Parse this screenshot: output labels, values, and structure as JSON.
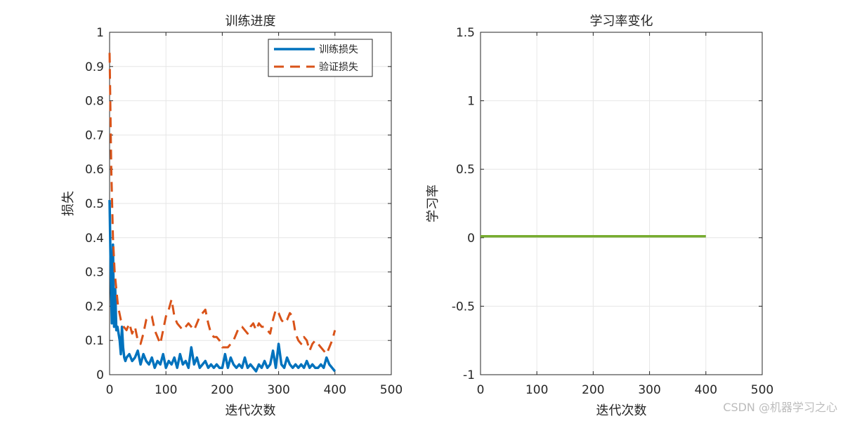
{
  "chart_data": [
    {
      "type": "line",
      "title": "训练进度",
      "xlabel": "迭代次数",
      "ylabel": "损失",
      "xlim": [
        0,
        500
      ],
      "ylim": [
        0,
        1
      ],
      "xticks": [
        "0",
        "100",
        "200",
        "300",
        "400",
        "500"
      ],
      "yticks": [
        "0",
        "0.1",
        "0.2",
        "0.3",
        "0.4",
        "0.5",
        "0.6",
        "0.7",
        "0.8",
        "0.9",
        "1"
      ],
      "grid": true,
      "legend_position": "top-right",
      "series": [
        {
          "name": "训练损失",
          "color": "#0072BD",
          "style": "solid",
          "x": [
            0,
            2,
            4,
            6,
            8,
            10,
            12,
            14,
            16,
            18,
            20,
            22,
            24,
            26,
            28,
            30,
            35,
            40,
            45,
            50,
            55,
            60,
            65,
            70,
            75,
            80,
            85,
            90,
            95,
            100,
            105,
            110,
            115,
            120,
            125,
            130,
            135,
            140,
            145,
            150,
            155,
            160,
            165,
            170,
            175,
            180,
            185,
            190,
            195,
            200,
            205,
            210,
            215,
            220,
            225,
            230,
            235,
            240,
            245,
            250,
            255,
            260,
            265,
            270,
            275,
            280,
            285,
            290,
            295,
            300,
            305,
            310,
            315,
            320,
            325,
            330,
            335,
            340,
            345,
            350,
            355,
            360,
            365,
            370,
            375,
            380,
            385,
            390,
            395,
            400
          ],
          "y": [
            0.51,
            0.3,
            0.15,
            0.38,
            0.14,
            0.25,
            0.13,
            0.14,
            0.12,
            0.1,
            0.06,
            0.14,
            0.08,
            0.05,
            0.04,
            0.05,
            0.06,
            0.04,
            0.05,
            0.07,
            0.03,
            0.06,
            0.04,
            0.03,
            0.05,
            0.02,
            0.04,
            0.03,
            0.06,
            0.02,
            0.04,
            0.03,
            0.05,
            0.02,
            0.06,
            0.03,
            0.04,
            0.02,
            0.08,
            0.03,
            0.05,
            0.02,
            0.03,
            0.04,
            0.02,
            0.03,
            0.02,
            0.03,
            0.02,
            0.02,
            0.06,
            0.02,
            0.05,
            0.03,
            0.02,
            0.03,
            0.02,
            0.05,
            0.02,
            0.03,
            0.02,
            0.01,
            0.03,
            0.02,
            0.04,
            0.02,
            0.03,
            0.07,
            0.02,
            0.09,
            0.03,
            0.02,
            0.05,
            0.03,
            0.02,
            0.03,
            0.02,
            0.03,
            0.02,
            0.04,
            0.02,
            0.03,
            0.02,
            0.02,
            0.03,
            0.02,
            0.05,
            0.03,
            0.02,
            0.01
          ]
        },
        {
          "name": "验证损失",
          "color": "#D95319",
          "style": "dashed",
          "x": [
            0,
            3,
            6,
            9,
            12,
            15,
            20,
            25,
            30,
            35,
            40,
            45,
            50,
            55,
            60,
            65,
            70,
            75,
            80,
            85,
            90,
            95,
            100,
            105,
            110,
            115,
            120,
            125,
            130,
            135,
            140,
            145,
            150,
            155,
            160,
            165,
            170,
            175,
            180,
            185,
            190,
            195,
            200,
            205,
            210,
            215,
            220,
            225,
            230,
            235,
            240,
            245,
            250,
            255,
            260,
            265,
            270,
            275,
            280,
            285,
            290,
            295,
            300,
            305,
            310,
            315,
            320,
            325,
            330,
            335,
            340,
            345,
            350,
            355,
            360,
            365,
            370,
            375,
            380,
            385,
            390,
            395,
            400
          ],
          "y": [
            0.94,
            0.6,
            0.4,
            0.3,
            0.25,
            0.2,
            0.16,
            0.14,
            0.13,
            0.15,
            0.12,
            0.14,
            0.1,
            0.09,
            0.12,
            0.16,
            0.17,
            0.17,
            0.13,
            0.11,
            0.09,
            0.13,
            0.17,
            0.19,
            0.22,
            0.17,
            0.15,
            0.14,
            0.13,
            0.14,
            0.15,
            0.14,
            0.13,
            0.15,
            0.17,
            0.18,
            0.19,
            0.15,
            0.12,
            0.11,
            0.11,
            0.1,
            0.08,
            0.08,
            0.08,
            0.09,
            0.1,
            0.12,
            0.14,
            0.14,
            0.13,
            0.12,
            0.14,
            0.15,
            0.13,
            0.15,
            0.14,
            0.14,
            0.13,
            0.12,
            0.16,
            0.19,
            0.18,
            0.16,
            0.15,
            0.16,
            0.18,
            0.17,
            0.12,
            0.1,
            0.09,
            0.11,
            0.1,
            0.07,
            0.09,
            0.1,
            0.09,
            0.08,
            0.07,
            0.06,
            0.08,
            0.1,
            0.13
          ]
        }
      ]
    },
    {
      "type": "line",
      "title": "学习率变化",
      "xlabel": "迭代次数",
      "ylabel": "学习率",
      "xlim": [
        0,
        500
      ],
      "ylim": [
        -1,
        1.5
      ],
      "xticks": [
        "0",
        "100",
        "200",
        "300",
        "400",
        "500"
      ],
      "yticks": [
        "-1",
        "-0.5",
        "0",
        "0.5",
        "1",
        "1.5"
      ],
      "grid": true,
      "series": [
        {
          "color": "#77AC30",
          "style": "solid",
          "x": [
            0,
            400
          ],
          "y": [
            0.01,
            0.01
          ]
        }
      ]
    }
  ],
  "watermark": "CSDN @机器学习之心"
}
